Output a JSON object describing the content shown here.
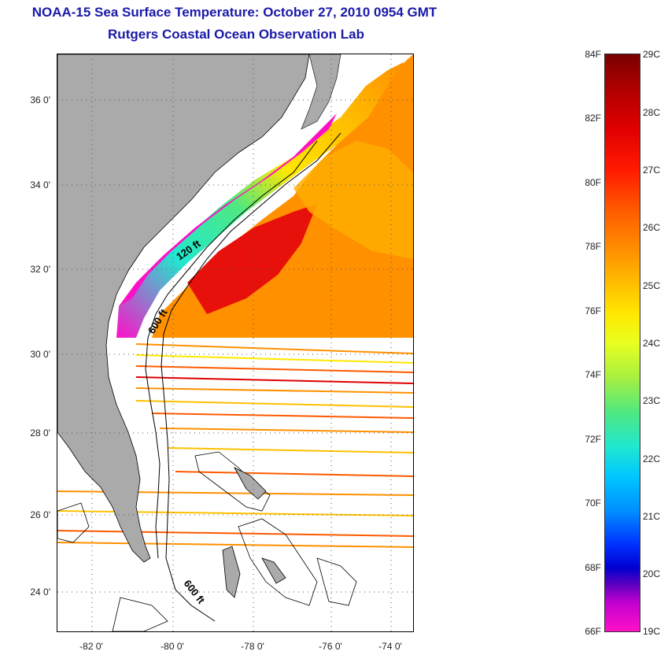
{
  "title": {
    "line1": "NOAA-15 Sea Surface Temperature:  October 27, 2010 0954 GMT",
    "line2": "Rutgers Coastal Ocean Observation Lab"
  },
  "map": {
    "latitude_labels": [
      "36 0'",
      "34 0'",
      "32 0'",
      "30 0'",
      "28 0'",
      "26 0'",
      "24 0'"
    ],
    "longitude_labels": [
      "-82 0'",
      "-80 0'",
      "-78 0'",
      "-76 0'",
      "-74 0'"
    ],
    "isobath_labels": [
      "120 ft",
      "600 ft",
      "600 ft"
    ],
    "colors": {
      "land": "#aaaaaa",
      "no_data": "#ffffff",
      "coastline": "#000000",
      "graticule": "#555555"
    }
  },
  "colorbar": {
    "fahrenheit_labels": [
      "84F",
      "82F",
      "80F",
      "78F",
      "76F",
      "74F",
      "72F",
      "70F",
      "68F",
      "66F"
    ],
    "celsius_labels": [
      "29C",
      "28C",
      "27C",
      "26C",
      "25C",
      "24C",
      "23C",
      "22C",
      "21C",
      "20C",
      "19C"
    ],
    "range_f": [
      66,
      84
    ],
    "range_c": [
      19,
      29
    ],
    "colors": {
      "max": "#7a0000",
      "high": "#e00000",
      "mid_high": "#ff9000",
      "mid": "#ffe800",
      "mid_low": "#20e8d0",
      "low": "#0030ff",
      "min": "#ff10c8"
    }
  }
}
